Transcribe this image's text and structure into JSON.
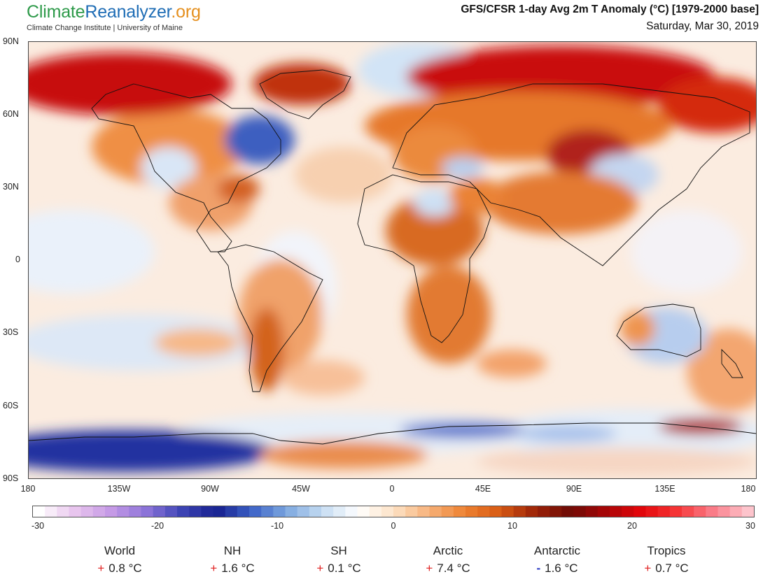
{
  "brand": {
    "logo_part1": "Climate",
    "logo_part2": "Reanalyzer",
    "logo_part3": ".org",
    "subtitle": "Climate Change Institute | University of Maine"
  },
  "header": {
    "title": "GFS/CFSR 1-day Avg 2m T Anomaly (°C) [1979-2000 base]",
    "date": "Saturday, Mar 30, 2019"
  },
  "map": {
    "lat_labels": [
      "90N",
      "60N",
      "30N",
      "0",
      "30S",
      "60S",
      "90S"
    ],
    "lon_labels": [
      "180",
      "135W",
      "90W",
      "45W",
      "0",
      "45E",
      "90E",
      "135E",
      "180"
    ]
  },
  "colorbar": {
    "tick_labels": [
      "-30",
      "-20",
      "-10",
      "0",
      "10",
      "20",
      "30"
    ],
    "min": -30,
    "max": 30,
    "colors": [
      "#ffffff",
      "#e9c6ee",
      "#c79be6",
      "#8f75da",
      "#3f46b6",
      "#17208f",
      "#3c62c6",
      "#7ea9e0",
      "#c6dcf2",
      "#ffffff",
      "#fde2c6",
      "#f7b27a",
      "#ee8232",
      "#d75a13",
      "#9c2308",
      "#6e0b06",
      "#a80607",
      "#e4060b",
      "#f63636",
      "#fa7c88",
      "#fdc4cc"
    ]
  },
  "stats": [
    {
      "name": "World",
      "sign": "+",
      "value": "0.8 °C"
    },
    {
      "name": "NH",
      "sign": "+",
      "value": "1.6 °C"
    },
    {
      "name": "SH",
      "sign": "+",
      "value": "0.1 °C"
    },
    {
      "name": "Arctic",
      "sign": "+",
      "value": "7.4 °C"
    },
    {
      "name": "Antarctic",
      "sign": "-",
      "value": "1.6 °C"
    },
    {
      "name": "Tropics",
      "sign": "+",
      "value": "0.7 °C"
    }
  ],
  "palette": {
    "ocean_base": "#fbe9da",
    "warm": "#ee8232",
    "hot": "#e4060b",
    "cold": "#3f46b6",
    "cool": "#9cc3ea"
  }
}
